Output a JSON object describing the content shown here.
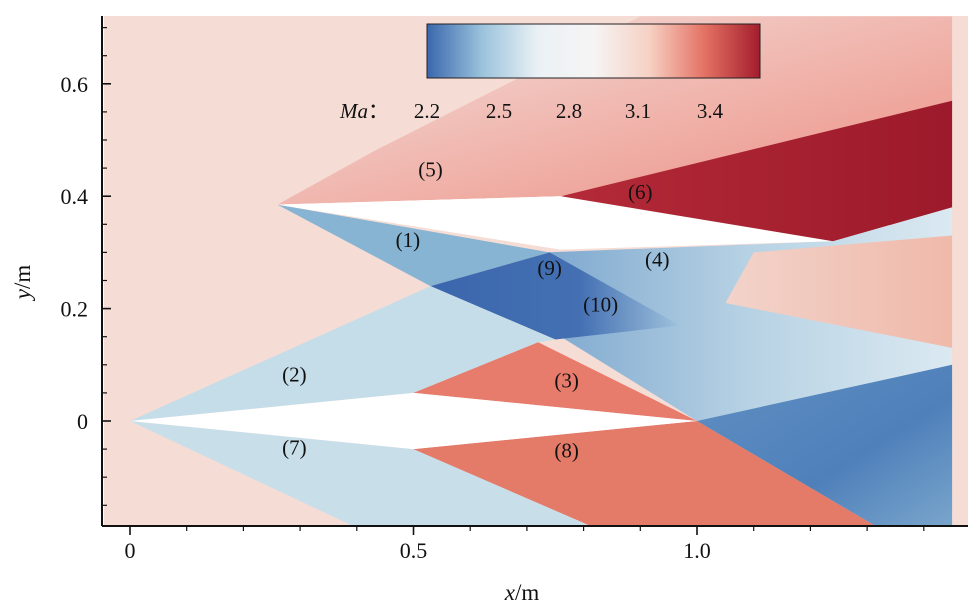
{
  "chart_data": {
    "type": "heatmap",
    "title": "",
    "xlabel": "x/m",
    "ylabel": "y/m",
    "xlabel_var": "x",
    "xlabel_unit": "/m",
    "ylabel_var": "y",
    "ylabel_unit": "/m",
    "xlim": [
      0,
      1.45
    ],
    "ylim": [
      -0.19,
      0.72
    ],
    "x_ticks": [
      {
        "value": 0,
        "label": "0"
      },
      {
        "value": 0.5,
        "label": "0.5"
      },
      {
        "value": 1.0,
        "label": "1.0"
      }
    ],
    "y_ticks": [
      {
        "value": 0,
        "label": "0"
      },
      {
        "value": 0.2,
        "label": "0.2"
      },
      {
        "value": 0.4,
        "label": "0.4"
      },
      {
        "value": 0.6,
        "label": "0.6"
      }
    ],
    "grid": false,
    "colorbar": {
      "variable": "Ma",
      "separator": "：",
      "range": [
        2.0,
        3.6
      ],
      "ticks": [
        "2.2",
        "2.5",
        "2.8",
        "3.1",
        "3.4"
      ],
      "tick_values": [
        2.2,
        2.5,
        2.8,
        3.1,
        3.4
      ],
      "placement": "top-center",
      "colors": [
        "#3a67ad",
        "#9cc3dc",
        "#eaf1f5",
        "#f6f4f4",
        "#f6d1c4",
        "#e47264",
        "#a31d2d"
      ]
    },
    "regions": [
      {
        "label": "(1)",
        "x": 0.49,
        "y": 0.31,
        "color": "#86b4d2"
      },
      {
        "label": "(2)",
        "x": 0.29,
        "y": 0.07,
        "color": "#c5dde9"
      },
      {
        "label": "(3)",
        "x": 0.77,
        "y": 0.06,
        "color": "#e77c6c"
      },
      {
        "label": "(4)",
        "x": 0.93,
        "y": 0.275,
        "color": "#bcd5e5"
      },
      {
        "label": "(5)",
        "x": 0.53,
        "y": 0.435,
        "color": "#f1e8e7"
      },
      {
        "label": "(6)",
        "x": 0.9,
        "y": 0.395,
        "color": "#a01d2d"
      },
      {
        "label": "(7)",
        "x": 0.29,
        "y": -0.06,
        "color": "#c8dfea"
      },
      {
        "label": "(8)",
        "x": 0.77,
        "y": -0.065,
        "color": "#e47a68"
      },
      {
        "label": "(9)",
        "x": 0.74,
        "y": 0.26,
        "color": "#3f6eb0"
      },
      {
        "label": "(10)",
        "x": 0.83,
        "y": 0.195,
        "color": "#5b8bbf"
      }
    ],
    "freestream_color": "#f5dcd5"
  }
}
